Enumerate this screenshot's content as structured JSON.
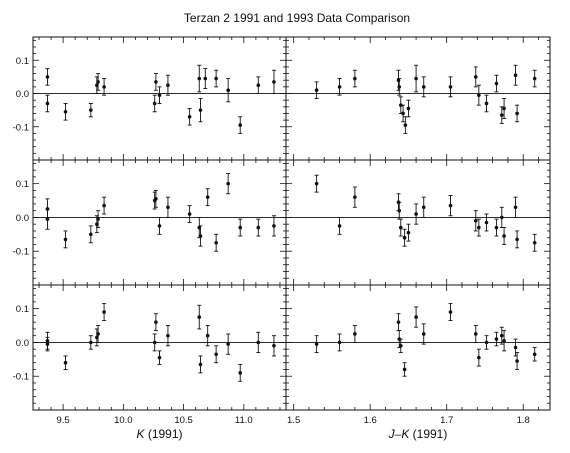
{
  "chart_data": {
    "type": "scatter",
    "title": "Terzan 2 1991 and 1993 Data Comparison",
    "layout": "3 rows x 2 columns, shared x per column, shared y range",
    "grid": false,
    "ylim": [
      -0.2,
      0.17
    ],
    "yticks": [
      -0.1,
      0.0,
      0.1
    ],
    "ytick_labels": [
      "-0.1",
      "0.0",
      "0.1"
    ],
    "columns": [
      {
        "xlabel_pre": "K",
        "xlabel_post": " (1991)",
        "xlim": [
          9.25,
          11.35
        ],
        "xticks": [
          9.5,
          10.0,
          10.5,
          11.0
        ],
        "xtick_labels": [
          "9.5",
          "10.0",
          "10.5",
          "11.0"
        ]
      },
      {
        "xlabel_pre": "J–K",
        "xlabel_post": " (1991)",
        "xlim": [
          1.49,
          1.835
        ],
        "xticks": [
          1.5,
          1.6,
          1.7,
          1.8
        ],
        "xtick_labels": [
          "1.5",
          "1.6",
          "1.7",
          "1.8"
        ]
      }
    ],
    "panels": [
      {
        "row": 0,
        "col": 0,
        "points": [
          [
            9.37,
            0.05,
            0.025
          ],
          [
            9.37,
            -0.03,
            0.025
          ],
          [
            9.52,
            -0.055,
            0.025
          ],
          [
            9.73,
            -0.05,
            0.02
          ],
          [
            9.78,
            0.025,
            0.025
          ],
          [
            9.79,
            0.035,
            0.025
          ],
          [
            9.84,
            0.02,
            0.025
          ],
          [
            10.26,
            -0.03,
            0.025
          ],
          [
            10.27,
            0.035,
            0.025
          ],
          [
            10.3,
            -0.005,
            0.025
          ],
          [
            10.37,
            0.025,
            0.03
          ],
          [
            10.55,
            -0.07,
            0.025
          ],
          [
            10.63,
            0.045,
            0.04
          ],
          [
            10.64,
            -0.05,
            0.035
          ],
          [
            10.68,
            0.045,
            0.03
          ],
          [
            10.77,
            0.045,
            0.025
          ],
          [
            10.87,
            0.01,
            0.035
          ],
          [
            10.97,
            -0.095,
            0.025
          ],
          [
            11.12,
            0.025,
            0.025
          ],
          [
            11.25,
            0.035,
            0.035
          ]
        ]
      },
      {
        "row": 0,
        "col": 1,
        "points": [
          [
            1.53,
            0.01,
            0.025
          ],
          [
            1.56,
            0.02,
            0.025
          ],
          [
            1.58,
            0.045,
            0.025
          ],
          [
            1.637,
            0.04,
            0.03
          ],
          [
            1.638,
            0.02,
            0.025
          ],
          [
            1.64,
            -0.035,
            0.025
          ],
          [
            1.643,
            -0.06,
            0.025
          ],
          [
            1.646,
            -0.095,
            0.025
          ],
          [
            1.65,
            -0.045,
            0.025
          ],
          [
            1.66,
            0.045,
            0.04
          ],
          [
            1.67,
            0.02,
            0.03
          ],
          [
            1.705,
            0.02,
            0.03
          ],
          [
            1.738,
            0.05,
            0.03
          ],
          [
            1.742,
            -0.005,
            0.03
          ],
          [
            1.752,
            -0.03,
            0.025
          ],
          [
            1.765,
            0.03,
            0.025
          ],
          [
            1.772,
            -0.065,
            0.025
          ],
          [
            1.775,
            -0.045,
            0.03
          ],
          [
            1.79,
            0.055,
            0.03
          ],
          [
            1.792,
            -0.06,
            0.025
          ],
          [
            1.815,
            0.045,
            0.025
          ]
        ]
      },
      {
        "row": 1,
        "col": 0,
        "points": [
          [
            9.37,
            0.025,
            0.03
          ],
          [
            9.37,
            -0.005,
            0.03
          ],
          [
            9.52,
            -0.065,
            0.025
          ],
          [
            9.73,
            -0.05,
            0.025
          ],
          [
            9.78,
            -0.02,
            0.025
          ],
          [
            9.79,
            -0.005,
            0.025
          ],
          [
            9.84,
            0.035,
            0.025
          ],
          [
            10.26,
            0.05,
            0.025
          ],
          [
            10.27,
            0.055,
            0.025
          ],
          [
            10.3,
            -0.025,
            0.025
          ],
          [
            10.37,
            0.03,
            0.03
          ],
          [
            10.55,
            0.01,
            0.025
          ],
          [
            10.63,
            -0.03,
            0.03
          ],
          [
            10.64,
            -0.055,
            0.03
          ],
          [
            10.7,
            0.06,
            0.025
          ],
          [
            10.77,
            -0.075,
            0.025
          ],
          [
            10.87,
            0.1,
            0.03
          ],
          [
            10.97,
            -0.03,
            0.025
          ],
          [
            11.12,
            -0.03,
            0.025
          ],
          [
            11.25,
            -0.025,
            0.03
          ]
        ]
      },
      {
        "row": 1,
        "col": 1,
        "points": [
          [
            1.53,
            0.1,
            0.025
          ],
          [
            1.56,
            -0.025,
            0.025
          ],
          [
            1.58,
            0.06,
            0.03
          ],
          [
            1.637,
            0.045,
            0.025
          ],
          [
            1.638,
            0.02,
            0.025
          ],
          [
            1.64,
            -0.03,
            0.025
          ],
          [
            1.645,
            -0.06,
            0.025
          ],
          [
            1.65,
            -0.045,
            0.025
          ],
          [
            1.66,
            0.01,
            0.03
          ],
          [
            1.67,
            0.03,
            0.03
          ],
          [
            1.705,
            0.035,
            0.03
          ],
          [
            1.738,
            -0.01,
            0.03
          ],
          [
            1.742,
            -0.03,
            0.025
          ],
          [
            1.752,
            -0.015,
            0.025
          ],
          [
            1.765,
            -0.03,
            0.025
          ],
          [
            1.772,
            0.0,
            0.03
          ],
          [
            1.775,
            -0.055,
            0.025
          ],
          [
            1.79,
            0.03,
            0.03
          ],
          [
            1.792,
            -0.065,
            0.025
          ],
          [
            1.815,
            -0.075,
            0.025
          ]
        ]
      },
      {
        "row": 2,
        "col": 0,
        "points": [
          [
            9.37,
            0.005,
            0.025
          ],
          [
            9.37,
            -0.005,
            0.02
          ],
          [
            9.52,
            -0.06,
            0.02
          ],
          [
            9.73,
            0.0,
            0.02
          ],
          [
            9.78,
            0.015,
            0.025
          ],
          [
            9.79,
            0.025,
            0.025
          ],
          [
            9.84,
            0.09,
            0.025
          ],
          [
            10.26,
            0.0,
            0.025
          ],
          [
            10.27,
            0.06,
            0.025
          ],
          [
            10.3,
            -0.045,
            0.02
          ],
          [
            10.37,
            0.02,
            0.03
          ],
          [
            10.63,
            0.075,
            0.035
          ],
          [
            10.64,
            -0.065,
            0.025
          ],
          [
            10.7,
            0.02,
            0.03
          ],
          [
            10.77,
            -0.035,
            0.025
          ],
          [
            10.87,
            -0.005,
            0.03
          ],
          [
            10.97,
            -0.09,
            0.025
          ],
          [
            11.12,
            0.0,
            0.03
          ],
          [
            11.25,
            -0.01,
            0.03
          ]
        ]
      },
      {
        "row": 2,
        "col": 1,
        "points": [
          [
            1.53,
            -0.005,
            0.025
          ],
          [
            1.56,
            0.0,
            0.025
          ],
          [
            1.58,
            0.025,
            0.025
          ],
          [
            1.637,
            0.06,
            0.025
          ],
          [
            1.638,
            0.01,
            0.025
          ],
          [
            1.64,
            -0.01,
            0.02
          ],
          [
            1.645,
            -0.08,
            0.02
          ],
          [
            1.66,
            0.075,
            0.03
          ],
          [
            1.67,
            0.025,
            0.03
          ],
          [
            1.705,
            0.09,
            0.025
          ],
          [
            1.738,
            0.025,
            0.025
          ],
          [
            1.742,
            -0.045,
            0.025
          ],
          [
            1.752,
            0.0,
            0.02
          ],
          [
            1.765,
            0.01,
            0.02
          ],
          [
            1.772,
            0.02,
            0.025
          ],
          [
            1.775,
            0.005,
            0.03
          ],
          [
            1.79,
            -0.015,
            0.025
          ],
          [
            1.792,
            -0.055,
            0.025
          ],
          [
            1.815,
            -0.035,
            0.02
          ]
        ]
      }
    ]
  }
}
